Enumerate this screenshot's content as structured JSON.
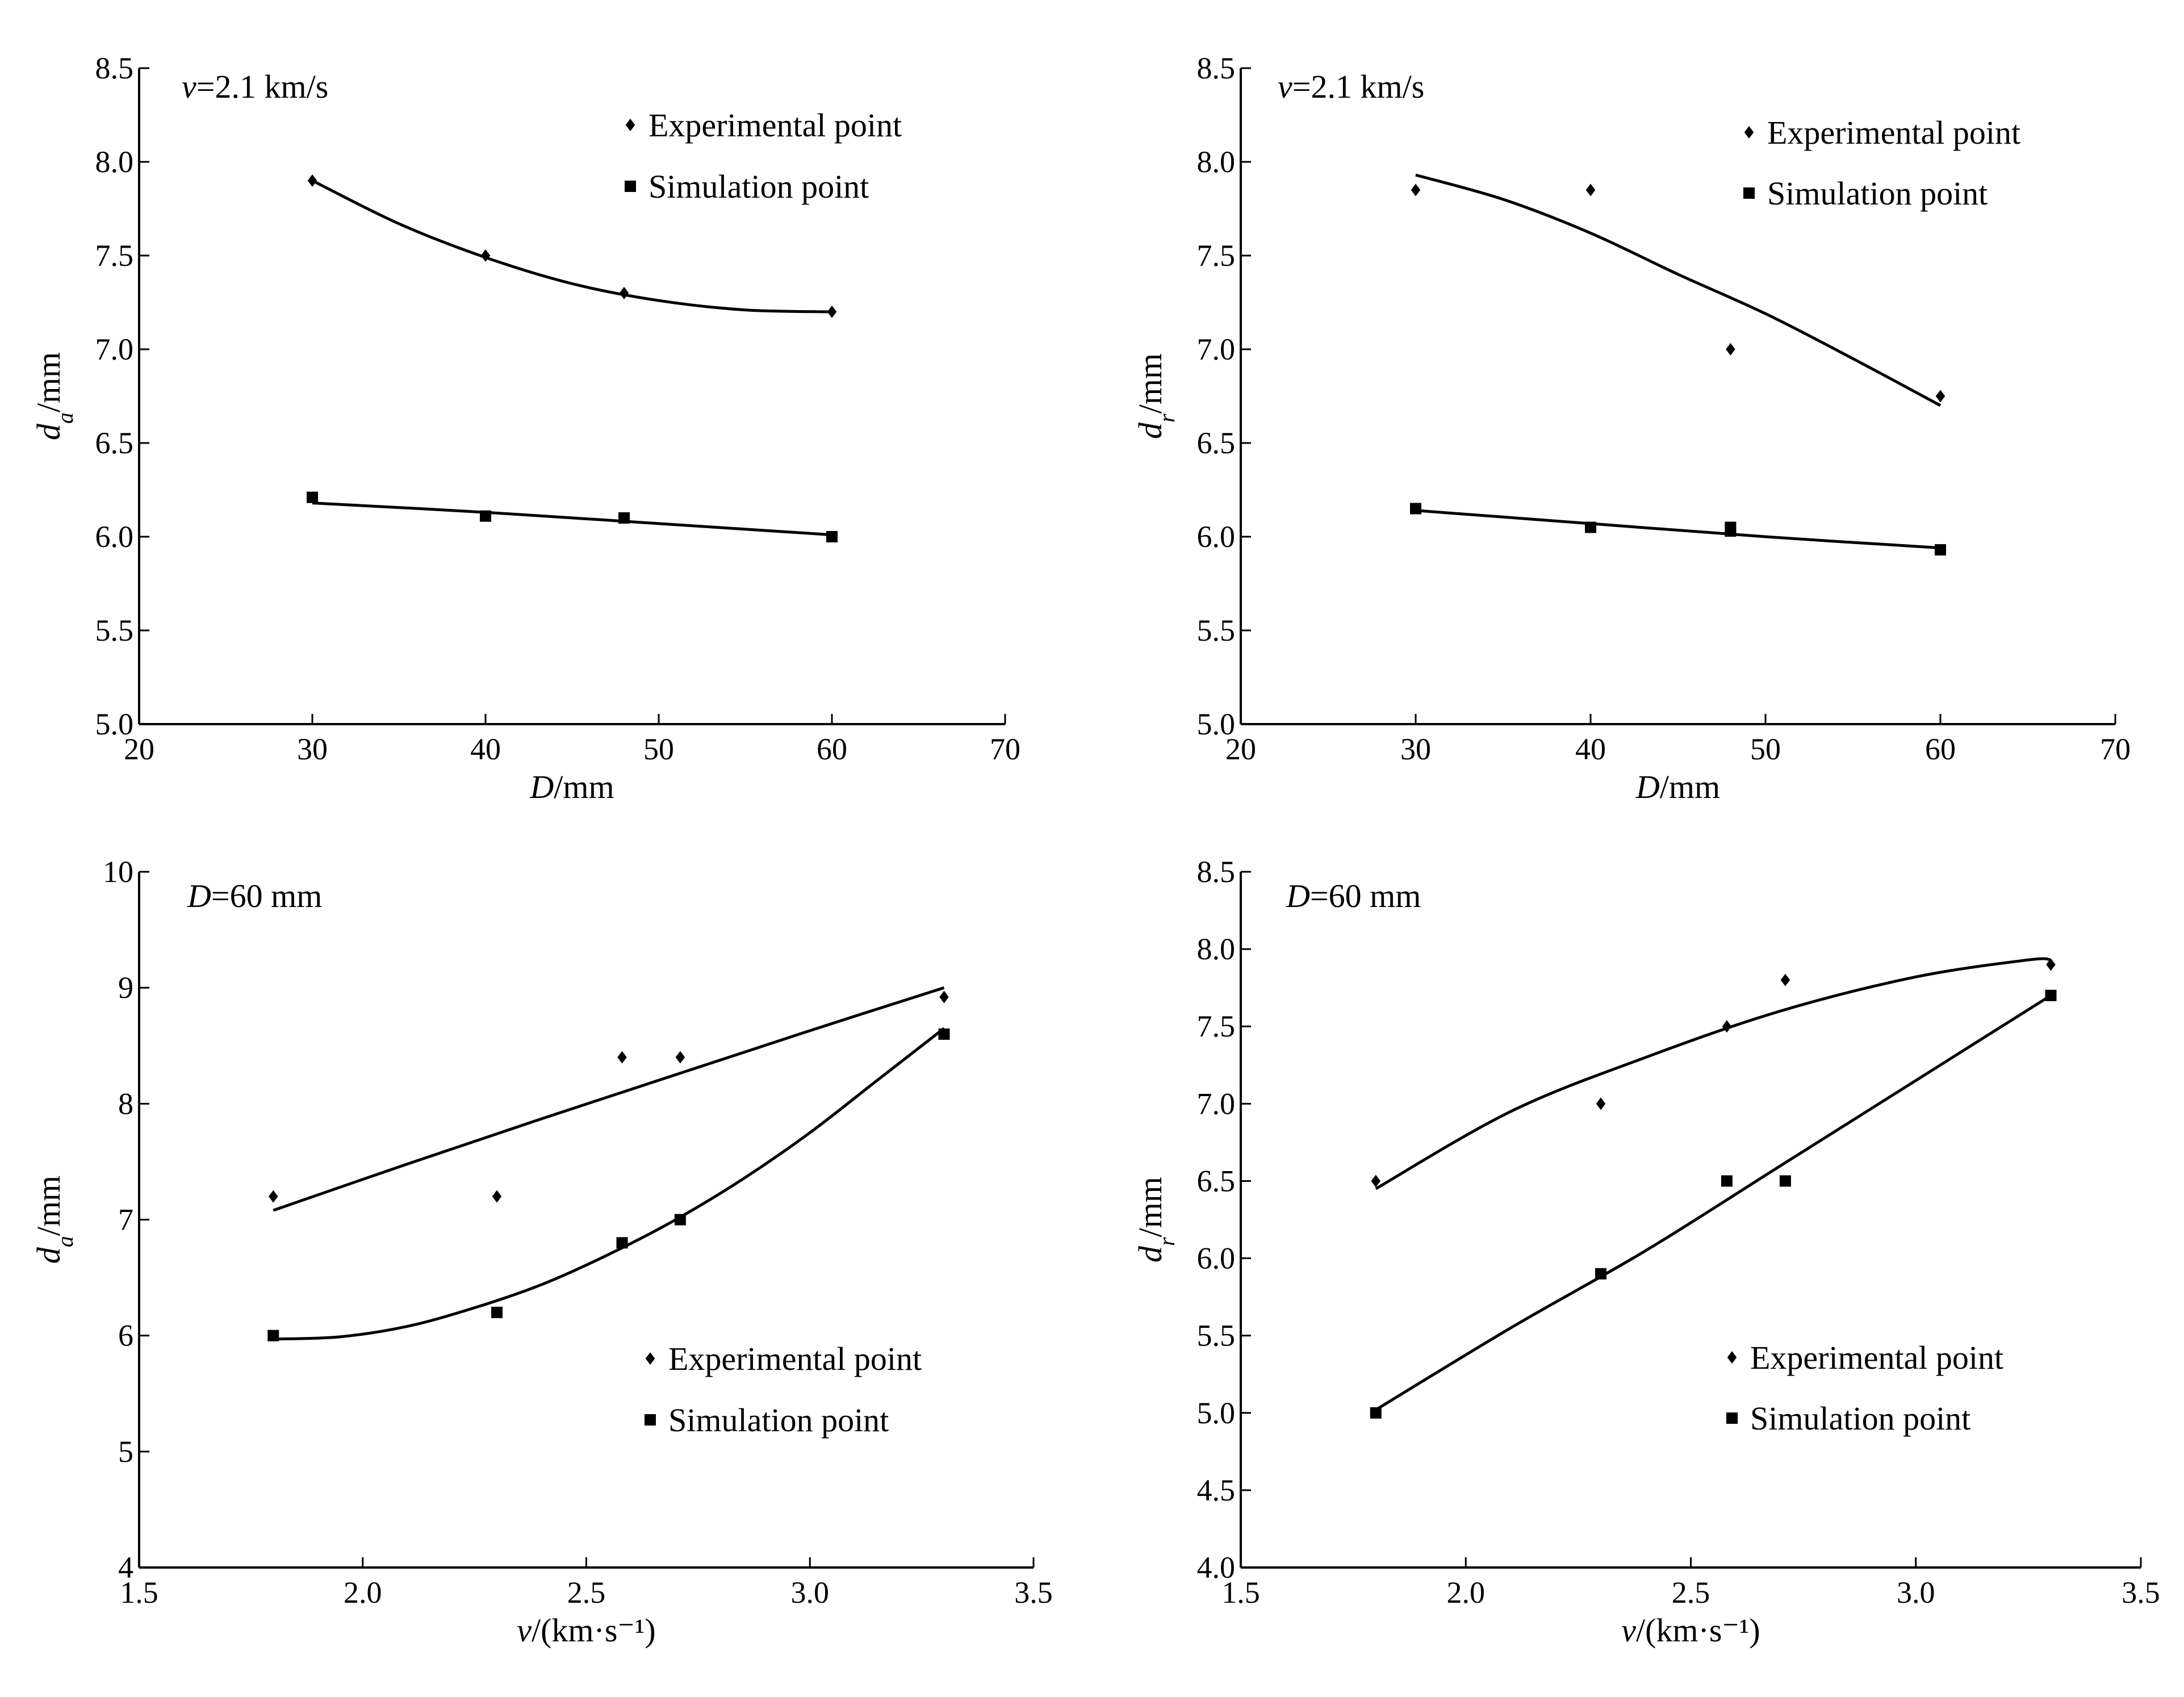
{
  "chart_data": [
    {
      "type": "scatter",
      "panel": "top-left",
      "annotation": "v=2.1 km/s",
      "xlabel": "D/mm",
      "ylabel": "d_a/mm",
      "xlim": [
        20,
        70
      ],
      "ylim": [
        5.0,
        8.5
      ],
      "xticks": [
        "20",
        "30",
        "40",
        "50",
        "60",
        "70"
      ],
      "yticks": [
        "5.0",
        "5.5",
        "6.0",
        "6.5",
        "7.0",
        "7.5",
        "8.0",
        "8.5"
      ],
      "legend_position": "top-right",
      "series": [
        {
          "name": "Experimental point",
          "marker": "diamond",
          "x": [
            30,
            40,
            48,
            60
          ],
          "y": [
            7.9,
            7.5,
            7.3,
            7.2
          ],
          "fit": {
            "x": [
              30,
              35,
              40,
              45,
              50,
              55,
              60
            ],
            "y": [
              7.9,
              7.67,
              7.49,
              7.35,
              7.26,
              7.21,
              7.2
            ]
          }
        },
        {
          "name": "Simulation point",
          "marker": "square",
          "x": [
            30,
            40,
            48,
            60
          ],
          "y": [
            6.21,
            6.11,
            6.1,
            6.0
          ],
          "fit": {
            "x": [
              30,
              40,
              50,
              60
            ],
            "y": [
              6.18,
              6.13,
              6.07,
              6.01
            ]
          }
        }
      ]
    },
    {
      "type": "scatter",
      "panel": "top-right",
      "annotation": "v=2.1 km/s",
      "xlabel": "D/mm",
      "ylabel": "d_r/mm",
      "xlim": [
        20,
        70
      ],
      "ylim": [
        5.0,
        8.5
      ],
      "xticks": [
        "20",
        "30",
        "40",
        "50",
        "60",
        "70"
      ],
      "yticks": [
        "5.0",
        "5.5",
        "6.0",
        "6.5",
        "7.0",
        "7.5",
        "8.0",
        "8.5"
      ],
      "legend_position": "top-right",
      "series": [
        {
          "name": "Experimental point",
          "marker": "diamond",
          "x": [
            30,
            40,
            48,
            60
          ],
          "y": [
            7.85,
            7.85,
            7.0,
            6.75
          ],
          "fit": {
            "x": [
              30,
              35,
              40,
              45,
              50,
              55,
              60
            ],
            "y": [
              7.93,
              7.8,
              7.62,
              7.4,
              7.19,
              6.95,
              6.7
            ]
          }
        },
        {
          "name": "Simulation point",
          "marker": "square",
          "x": [
            30,
            40,
            48,
            48,
            60
          ],
          "y": [
            6.15,
            6.05,
            6.05,
            6.03,
            5.93
          ],
          "fit": {
            "x": [
              30,
              40,
              50,
              60
            ],
            "y": [
              6.14,
              6.07,
              6.0,
              5.94
            ]
          }
        }
      ]
    },
    {
      "type": "scatter",
      "panel": "bottom-left",
      "annotation": "D=60 mm",
      "xlabel": "v/(km·s⁻¹)",
      "ylabel": "d_a/mm",
      "xlim": [
        1.5,
        3.5
      ],
      "ylim": [
        4,
        10
      ],
      "xticks": [
        "1.5",
        "2.0",
        "2.5",
        "3.0",
        "3.5"
      ],
      "yticks": [
        "4",
        "5",
        "6",
        "7",
        "8",
        "9",
        "10"
      ],
      "legend_position": "bottom-right",
      "series": [
        {
          "name": "Experimental point",
          "marker": "diamond",
          "x": [
            1.8,
            2.3,
            2.58,
            2.71,
            3.3
          ],
          "y": [
            7.2,
            7.2,
            8.4,
            8.4,
            8.92
          ],
          "fit": {
            "x": [
              1.8,
              2.1,
              2.4,
              2.7,
              3.0,
              3.3
            ],
            "y": [
              7.08,
              7.48,
              7.87,
              8.25,
              8.63,
              9.0
            ]
          }
        },
        {
          "name": "Simulation point",
          "marker": "square",
          "x": [
            1.8,
            2.3,
            2.58,
            2.71,
            3.3
          ],
          "y": [
            6.0,
            6.2,
            6.8,
            7.0,
            8.6
          ],
          "fit": {
            "x": [
              1.8,
              1.95,
              2.1,
              2.25,
              2.4,
              2.55,
              2.7,
              2.85,
              3.0,
              3.15,
              3.3
            ],
            "y": [
              5.97,
              5.99,
              6.08,
              6.24,
              6.44,
              6.7,
              7.0,
              7.35,
              7.75,
              8.2,
              8.65
            ]
          }
        }
      ]
    },
    {
      "type": "scatter",
      "panel": "bottom-right",
      "annotation": "D=60 mm",
      "xlabel": "v/(km·s⁻¹)",
      "ylabel": "d_r/mm",
      "xlim": [
        1.5,
        3.5
      ],
      "ylim": [
        4.0,
        8.5
      ],
      "xticks": [
        "1.5",
        "2.0",
        "2.5",
        "3.0",
        "3.5"
      ],
      "yticks": [
        "4.0",
        "4.5",
        "5.0",
        "5.5",
        "6.0",
        "6.5",
        "7.0",
        "7.5",
        "8.0",
        "8.5"
      ],
      "legend_position": "bottom-right",
      "series": [
        {
          "name": "Experimental point",
          "marker": "diamond",
          "x": [
            1.8,
            2.3,
            2.58,
            2.71,
            3.3
          ],
          "y": [
            6.5,
            7.0,
            7.5,
            7.8,
            7.9
          ],
          "fit": {
            "x": [
              1.8,
              2.1,
              2.4,
              2.7,
              3.0,
              3.25,
              3.3
            ],
            "y": [
              6.45,
              6.95,
              7.3,
              7.6,
              7.82,
              7.93,
              7.93
            ]
          }
        },
        {
          "name": "Simulation point",
          "marker": "square",
          "x": [
            1.8,
            2.3,
            2.58,
            2.71,
            3.3
          ],
          "y": [
            5.0,
            5.9,
            6.5,
            6.5,
            7.7
          ],
          "fit": {
            "x": [
              1.8,
              2.1,
              2.4,
              2.7,
              3.0,
              3.3
            ],
            "y": [
              5.02,
              5.55,
              6.05,
              6.6,
              7.15,
              7.7
            ]
          }
        }
      ]
    }
  ]
}
